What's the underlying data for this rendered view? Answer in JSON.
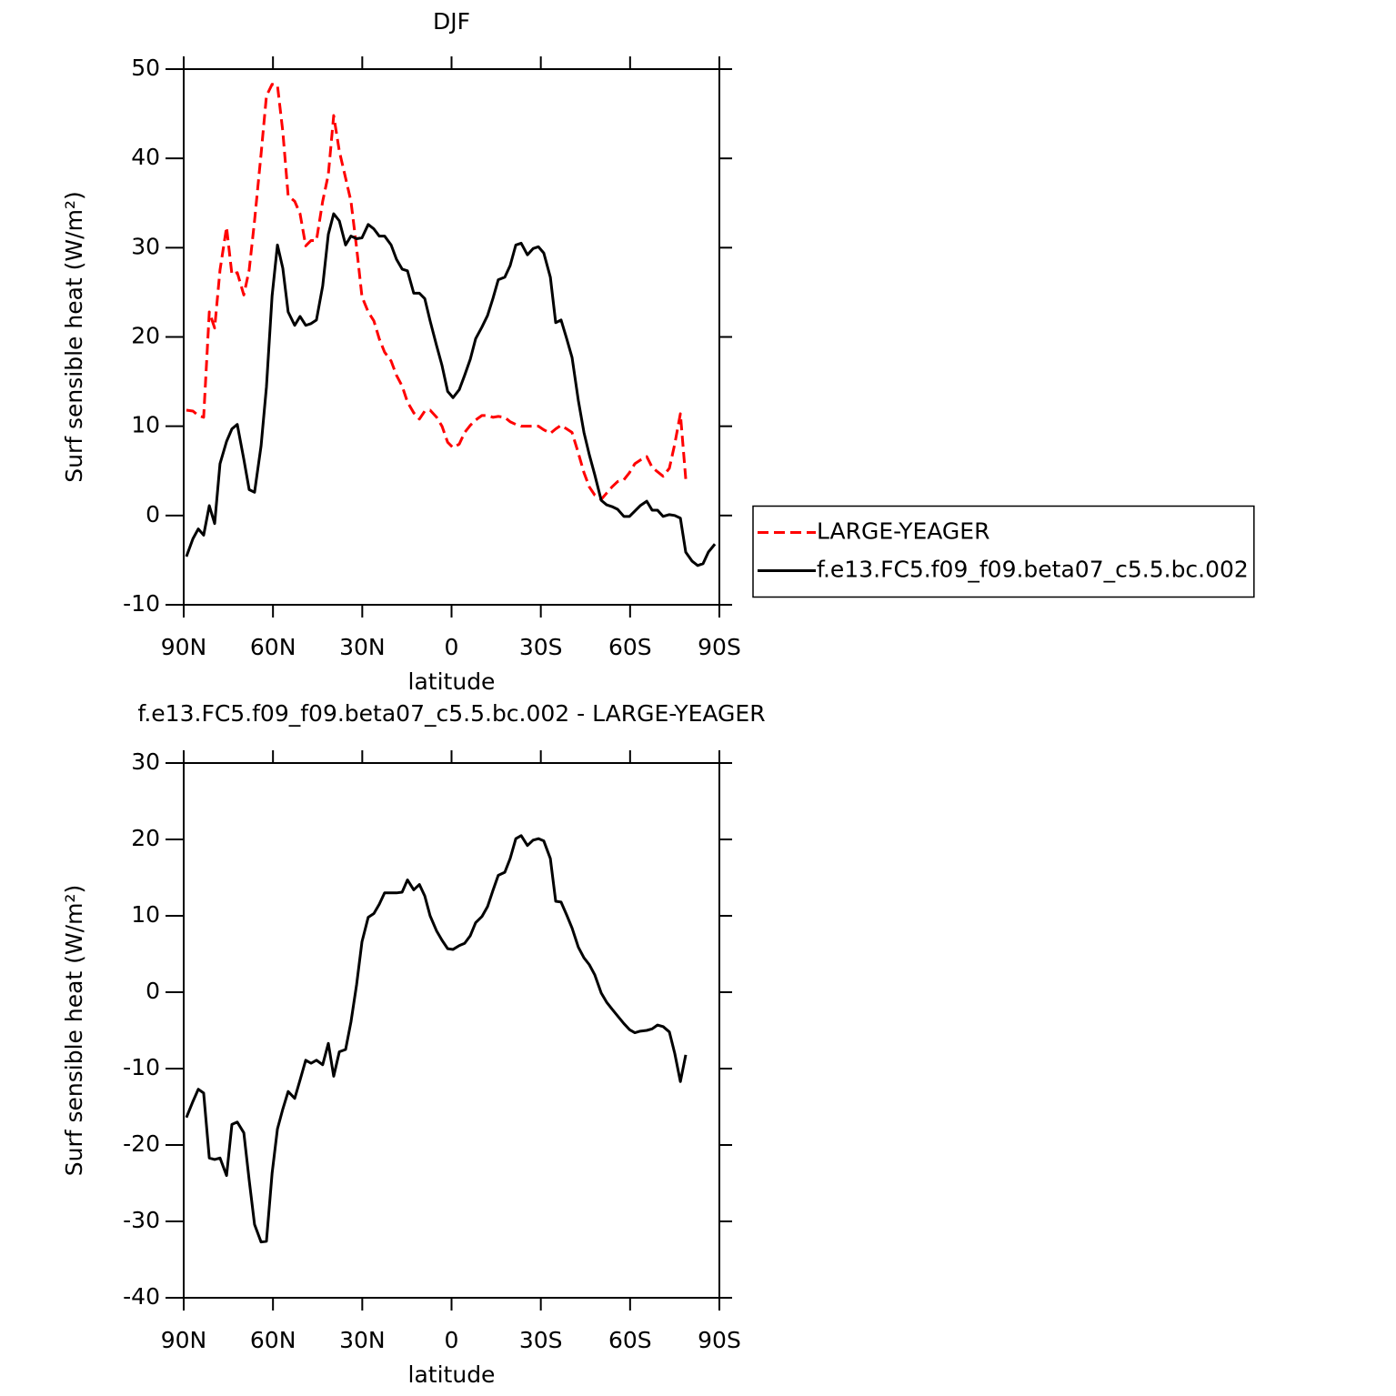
{
  "chart_data": [
    {
      "type": "line",
      "title": "DJF",
      "x_label": "latitude",
      "y_label": "Surf sensible heat (W/m²)",
      "x": [
        89.1,
        86.9,
        85.1,
        83.3,
        81.4,
        79.6,
        77.8,
        75.6,
        73.8,
        72.0,
        69.8,
        68.0,
        66.2,
        64.0,
        62.2,
        60.3,
        58.5,
        56.7,
        54.9,
        52.7,
        50.9,
        49.0,
        47.2,
        45.4,
        43.3,
        41.4,
        39.6,
        37.7,
        35.6,
        33.8,
        31.9,
        30.1,
        28.0,
        26.1,
        24.3,
        22.5,
        20.3,
        18.5,
        16.6,
        14.8,
        12.7,
        10.8,
        9.0,
        7.2,
        5.0,
        3.2,
        1.3,
        -0.5,
        -2.6,
        -4.4,
        -6.3,
        -8.1,
        -10.2,
        -12.1,
        -13.9,
        -15.7,
        -17.9,
        -19.7,
        -21.6,
        -23.4,
        -25.5,
        -27.4,
        -29.2,
        -31.0,
        -33.2,
        -35.0,
        -36.8,
        -38.7,
        -40.5,
        -42.6,
        -44.5,
        -46.3,
        -48.1,
        -50.3,
        -52.1,
        -53.9,
        -55.8,
        -57.9,
        -59.8,
        -61.6,
        -63.4,
        -65.6,
        -67.4,
        -69.2,
        -71.1,
        -73.2,
        -75.0,
        -76.9,
        -78.7,
        -80.8,
        -82.7,
        -84.5,
        -86.3,
        -88.5
      ],
      "xlim": [
        90,
        -90
      ],
      "xticks": [
        {
          "value": 90,
          "label": "90N"
        },
        {
          "value": 60,
          "label": "60N"
        },
        {
          "value": 30,
          "label": "30N"
        },
        0,
        {
          "value": -30,
          "label": "30S"
        },
        {
          "value": -60,
          "label": "60S"
        },
        {
          "value": -90,
          "label": "90S"
        }
      ],
      "ylim": [
        -10,
        50
      ],
      "yticks": [
        -10,
        0,
        10,
        20,
        30,
        40,
        50
      ],
      "legend": "right",
      "series": [
        {
          "name": "LARGE-YEAGER",
          "color": "#ff0000",
          "dash": "dashed",
          "values": [
            11.8,
            11.7,
            11.2,
            11.0,
            22.8,
            21.0,
            27.5,
            32.3,
            27.0,
            27.2,
            24.7,
            27.5,
            33.0,
            40.5,
            47.0,
            48.3,
            48.2,
            43.0,
            35.8,
            35.2,
            33.8,
            30.2,
            30.8,
            30.8,
            35.2,
            38.2,
            44.8,
            40.8,
            37.8,
            35.2,
            30.0,
            24.5,
            22.8,
            21.8,
            19.8,
            18.3,
            17.3,
            15.7,
            14.5,
            12.7,
            11.5,
            10.8,
            11.7,
            11.8,
            11.0,
            10.0,
            8.2,
            7.6,
            8.0,
            9.3,
            10.1,
            10.7,
            11.2,
            11.2,
            11.0,
            11.1,
            11.0,
            10.5,
            10.2,
            10.0,
            10.0,
            10.0,
            10.0,
            9.6,
            9.2,
            9.7,
            10.1,
            9.7,
            9.3,
            7.0,
            4.8,
            3.2,
            2.3,
            1.8,
            2.5,
            3.2,
            3.8,
            4.0,
            4.8,
            5.8,
            6.2,
            6.6,
            5.4,
            4.9,
            4.4,
            5.3,
            8.0,
            11.4,
            4.1,
            null,
            null,
            null,
            null,
            null
          ]
        },
        {
          "name": "f.e13.FC5.f09_f09.beta07_c5.5.bc.002",
          "color": "#000000",
          "dash": "solid",
          "values": [
            -4.6,
            -2.6,
            -1.5,
            -2.2,
            1.1,
            -0.9,
            5.8,
            8.3,
            9.7,
            10.2,
            6.3,
            2.9,
            2.6,
            7.8,
            14.4,
            24.6,
            30.3,
            27.7,
            22.8,
            21.3,
            22.3,
            21.3,
            21.5,
            21.9,
            25.7,
            31.5,
            33.8,
            33.0,
            30.3,
            31.3,
            31.0,
            31.1,
            32.6,
            32.1,
            31.3,
            31.3,
            30.3,
            28.7,
            27.6,
            27.4,
            24.9,
            24.9,
            24.3,
            21.8,
            19.0,
            16.8,
            13.9,
            13.2,
            14.1,
            15.7,
            17.5,
            19.8,
            21.1,
            22.4,
            24.3,
            26.4,
            26.7,
            28.0,
            30.3,
            30.5,
            29.2,
            29.9,
            30.1,
            29.4,
            26.7,
            21.6,
            21.9,
            19.8,
            17.7,
            12.9,
            9.3,
            6.8,
            4.6,
            1.7,
            1.2,
            1.0,
            0.7,
            -0.1,
            -0.1,
            0.5,
            1.1,
            1.6,
            0.6,
            0.6,
            -0.1,
            0.1,
            0.0,
            -0.3,
            -4.1,
            -5.1,
            -5.6,
            -5.4,
            -4.1,
            -3.2
          ]
        }
      ]
    },
    {
      "type": "line",
      "title": "f.e13.FC5.f09_f09.beta07_c5.5.bc.002 - LARGE-YEAGER",
      "x_label": "latitude",
      "y_label": "Surf sensible heat (W/m²)",
      "x": [
        89.1,
        86.9,
        85.1,
        83.3,
        81.4,
        79.6,
        77.8,
        75.6,
        73.8,
        72.0,
        69.8,
        68.0,
        66.2,
        64.0,
        62.2,
        60.3,
        58.5,
        56.7,
        54.9,
        52.7,
        50.9,
        49.0,
        47.2,
        45.4,
        43.3,
        41.4,
        39.6,
        37.7,
        35.6,
        33.8,
        31.9,
        30.1,
        28.0,
        26.1,
        24.3,
        22.5,
        20.3,
        18.5,
        16.6,
        14.8,
        12.7,
        10.8,
        9.0,
        7.2,
        5.0,
        3.2,
        1.3,
        -0.5,
        -2.6,
        -4.4,
        -6.3,
        -8.1,
        -10.2,
        -12.1,
        -13.9,
        -15.7,
        -17.9,
        -19.7,
        -21.6,
        -23.4,
        -25.5,
        -27.4,
        -29.2,
        -31.0,
        -33.2,
        -35.0,
        -36.8,
        -38.7,
        -40.5,
        -42.6,
        -44.5,
        -46.3,
        -48.1,
        -50.3,
        -52.1,
        -53.9,
        -55.8,
        -57.9,
        -59.8,
        -61.6,
        -63.4,
        -65.6,
        -67.4,
        -69.2,
        -71.1,
        -73.2,
        -75.0,
        -76.9,
        -78.7,
        -80.8,
        -82.7,
        -84.5,
        -86.3,
        -88.5
      ],
      "xlim": [
        90,
        -90
      ],
      "xticks": [
        {
          "value": 90,
          "label": "90N"
        },
        {
          "value": 60,
          "label": "60N"
        },
        {
          "value": 30,
          "label": "30N"
        },
        0,
        {
          "value": -30,
          "label": "30S"
        },
        {
          "value": -60,
          "label": "60S"
        },
        {
          "value": -90,
          "label": "90S"
        }
      ],
      "ylim": [
        -40,
        30
      ],
      "yticks": [
        -40,
        -30,
        -20,
        -10,
        0,
        10,
        20,
        30
      ],
      "color": "#000000",
      "values": [
        -16.4,
        -14.3,
        -12.7,
        -13.2,
        -21.7,
        -21.9,
        -21.7,
        -24.0,
        -17.3,
        -17.0,
        -18.4,
        -24.6,
        -30.4,
        -32.7,
        -32.6,
        -23.7,
        -17.9,
        -15.3,
        -13.0,
        -13.9,
        -11.5,
        -8.9,
        -9.3,
        -8.9,
        -9.5,
        -6.7,
        -11.0,
        -7.8,
        -7.5,
        -3.9,
        1.0,
        6.6,
        9.8,
        10.3,
        11.5,
        13.0,
        13.0,
        13.0,
        13.1,
        14.7,
        13.4,
        14.1,
        12.6,
        10.0,
        8.0,
        6.8,
        5.7,
        5.6,
        6.1,
        6.4,
        7.4,
        9.1,
        9.9,
        11.2,
        13.3,
        15.3,
        15.7,
        17.5,
        20.1,
        20.5,
        19.2,
        19.9,
        20.1,
        19.8,
        17.5,
        11.9,
        11.8,
        10.1,
        8.4,
        5.9,
        4.5,
        3.6,
        2.3,
        -0.1,
        -1.3,
        -2.2,
        -3.1,
        -4.1,
        -4.9,
        -5.3,
        -5.1,
        -5.0,
        -4.8,
        -4.3,
        -4.5,
        -5.2,
        -8.0,
        -11.7,
        -8.2,
        null,
        null,
        null,
        null,
        null
      ]
    }
  ]
}
